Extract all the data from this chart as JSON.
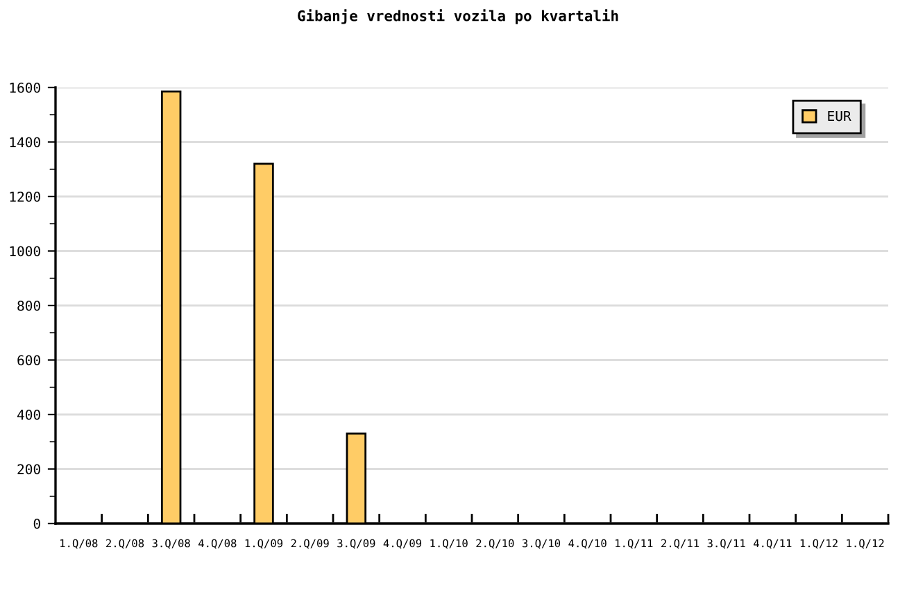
{
  "chart_data": {
    "type": "bar",
    "title": "Gibanje vrednosti vozila po kvartalih",
    "categories": [
      "1.Q/08",
      "2.Q/08",
      "3.Q/08",
      "4.Q/08",
      "1.Q/09",
      "2.Q/09",
      "3.Q/09",
      "4.Q/09",
      "1.Q/10",
      "2.Q/10",
      "3.Q/10",
      "4.Q/10",
      "1.Q/11",
      "2.Q/11",
      "3.Q/11",
      "4.Q/11",
      "1.Q/12",
      "1.Q/12"
    ],
    "series": [
      {
        "name": "EUR",
        "color": "#ffcc66",
        "values": [
          null,
          null,
          1585,
          null,
          1320,
          null,
          330,
          null,
          null,
          null,
          null,
          null,
          null,
          null,
          null,
          null,
          null,
          null
        ]
      }
    ],
    "ylim": [
      0,
      1600
    ],
    "yticks": [
      0,
      {
        "value": 100,
        "label": null
      },
      200,
      {
        "value": 300,
        "label": null
      },
      400,
      {
        "value": 500,
        "label": null
      },
      600,
      {
        "value": 700,
        "label": null
      },
      800,
      {
        "value": 900,
        "label": null
      },
      1000,
      {
        "value": 1100,
        "label": null
      },
      1200,
      {
        "value": 1300,
        "label": null
      },
      1400,
      {
        "value": 1500,
        "label": null
      },
      1600
    ],
    "grid": "y",
    "legend": "top right"
  }
}
